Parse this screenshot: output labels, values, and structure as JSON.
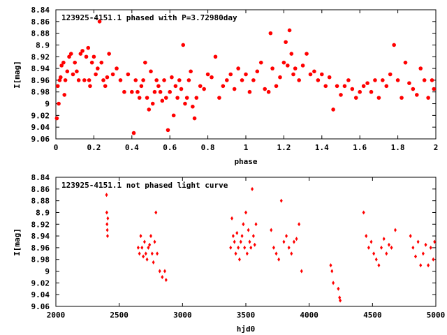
{
  "chart_data": [
    {
      "type": "scatter",
      "title": "123925-4151.1 phased with P=3.72980day",
      "xlabel": "phase",
      "ylabel": "I[mag]",
      "xlim": [
        0,
        2
      ],
      "ylim": [
        8.84,
        9.06
      ],
      "y_inverted": true,
      "grid": false,
      "x_ticks": [
        "0",
        "0.2",
        "0.4",
        "0.6",
        "0.8",
        "1",
        "1.2",
        "1.4",
        "1.6",
        "1.8",
        "2"
      ],
      "y_ticks": [
        "8.84",
        "8.86",
        "8.88",
        "8.9",
        "8.92",
        "8.94",
        "8.96",
        "8.98",
        "9",
        "9.02",
        "9.04",
        "9.06"
      ],
      "marker_color": "#ff0000",
      "marker": "filled-circle",
      "series": [
        {
          "points": [
            [
              0.005,
              9.025
            ],
            [
              0.01,
              8.97
            ],
            [
              0.015,
              9.0
            ],
            [
              0.02,
              8.96
            ],
            [
              0.025,
              8.955
            ],
            [
              0.03,
              8.935
            ],
            [
              0.04,
              8.93
            ],
            [
              0.045,
              8.985
            ],
            [
              0.05,
              8.96
            ],
            [
              0.06,
              8.945
            ],
            [
              0.07,
              8.92
            ],
            [
              0.08,
              8.915
            ],
            [
              0.09,
              8.95
            ],
            [
              0.1,
              8.93
            ],
            [
              0.11,
              8.945
            ],
            [
              0.12,
              8.96
            ],
            [
              0.13,
              8.915
            ],
            [
              0.14,
              8.91
            ],
            [
              0.15,
              8.96
            ],
            [
              0.16,
              8.92
            ],
            [
              0.17,
              8.905
            ],
            [
              0.175,
              8.96
            ],
            [
              0.18,
              8.97
            ],
            [
              0.19,
              8.93
            ],
            [
              0.2,
              8.92
            ],
            [
              0.21,
              8.95
            ],
            [
              0.22,
              8.94
            ],
            [
              0.23,
              8.86
            ],
            [
              0.24,
              8.93
            ],
            [
              0.25,
              8.96
            ],
            [
              0.26,
              8.97
            ],
            [
              0.27,
              8.955
            ],
            [
              0.28,
              8.915
            ],
            [
              0.3,
              8.95
            ],
            [
              0.32,
              8.94
            ],
            [
              0.34,
              8.96
            ],
            [
              0.36,
              8.98
            ],
            [
              0.38,
              8.95
            ],
            [
              0.4,
              8.98
            ],
            [
              0.41,
              9.05
            ],
            [
              0.42,
              8.96
            ],
            [
              0.43,
              8.98
            ],
            [
              0.44,
              8.99
            ],
            [
              0.45,
              8.97
            ],
            [
              0.46,
              8.96
            ],
            [
              0.47,
              8.93
            ],
            [
              0.48,
              8.99
            ],
            [
              0.49,
              9.01
            ],
            [
              0.5,
              8.945
            ],
            [
              0.51,
              9.0
            ],
            [
              0.52,
              8.98
            ],
            [
              0.53,
              8.96
            ],
            [
              0.54,
              8.97
            ],
            [
              0.55,
              8.98
            ],
            [
              0.56,
              8.995
            ],
            [
              0.57,
              8.96
            ],
            [
              0.58,
              8.99
            ],
            [
              0.59,
              9.045
            ],
            [
              0.6,
              8.98
            ],
            [
              0.61,
              8.955
            ],
            [
              0.62,
              9.02
            ],
            [
              0.63,
              8.97
            ],
            [
              0.64,
              8.99
            ],
            [
              0.65,
              8.96
            ],
            [
              0.66,
              8.975
            ],
            [
              0.67,
              8.9
            ],
            [
              0.68,
              9.0
            ],
            [
              0.69,
              8.99
            ],
            [
              0.7,
              8.96
            ],
            [
              0.71,
              8.945
            ],
            [
              0.72,
              9.005
            ],
            [
              0.73,
              9.025
            ],
            [
              0.74,
              8.99
            ],
            [
              0.76,
              8.97
            ],
            [
              0.78,
              8.975
            ],
            [
              0.8,
              8.95
            ],
            [
              0.82,
              8.955
            ],
            [
              0.84,
              8.92
            ],
            [
              0.86,
              8.99
            ],
            [
              0.88,
              8.97
            ],
            [
              0.9,
              8.96
            ],
            [
              0.92,
              8.95
            ],
            [
              0.94,
              8.975
            ],
            [
              0.96,
              8.94
            ],
            [
              0.98,
              8.96
            ],
            [
              1.0,
              8.95
            ],
            [
              1.02,
              8.98
            ],
            [
              1.04,
              8.96
            ],
            [
              1.06,
              8.945
            ],
            [
              1.08,
              8.93
            ],
            [
              1.1,
              8.975
            ],
            [
              1.12,
              8.98
            ],
            [
              1.13,
              8.88
            ],
            [
              1.14,
              8.94
            ],
            [
              1.16,
              8.97
            ],
            [
              1.18,
              8.955
            ],
            [
              1.2,
              8.93
            ],
            [
              1.21,
              8.895
            ],
            [
              1.22,
              8.935
            ],
            [
              1.23,
              8.875
            ],
            [
              1.24,
              8.915
            ],
            [
              1.25,
              8.95
            ],
            [
              1.26,
              8.94
            ],
            [
              1.28,
              8.96
            ],
            [
              1.3,
              8.935
            ],
            [
              1.32,
              8.915
            ],
            [
              1.34,
              8.95
            ],
            [
              1.36,
              8.945
            ],
            [
              1.38,
              8.96
            ],
            [
              1.4,
              8.95
            ],
            [
              1.42,
              8.97
            ],
            [
              1.44,
              8.955
            ],
            [
              1.46,
              9.01
            ],
            [
              1.48,
              8.97
            ],
            [
              1.5,
              8.985
            ],
            [
              1.52,
              8.97
            ],
            [
              1.54,
              8.96
            ],
            [
              1.56,
              8.975
            ],
            [
              1.58,
              8.99
            ],
            [
              1.6,
              8.98
            ],
            [
              1.62,
              8.97
            ],
            [
              1.64,
              8.965
            ],
            [
              1.66,
              8.98
            ],
            [
              1.68,
              8.96
            ],
            [
              1.7,
              8.99
            ],
            [
              1.72,
              8.96
            ],
            [
              1.74,
              8.97
            ],
            [
              1.76,
              8.95
            ],
            [
              1.78,
              8.9
            ],
            [
              1.8,
              8.96
            ],
            [
              1.82,
              8.99
            ],
            [
              1.84,
              8.93
            ],
            [
              1.86,
              8.965
            ],
            [
              1.88,
              8.975
            ],
            [
              1.9,
              8.985
            ],
            [
              1.92,
              8.94
            ],
            [
              1.94,
              8.96
            ],
            [
              1.96,
              8.99
            ],
            [
              1.98,
              8.96
            ],
            [
              1.99,
              8.975
            ]
          ]
        }
      ]
    },
    {
      "type": "scatter",
      "title": "123925-4151.1 not phased light curve",
      "xlabel": "hjd0",
      "ylabel": "I[mag]",
      "xlim": [
        2000,
        5000
      ],
      "ylim": [
        8.84,
        9.06
      ],
      "y_inverted": true,
      "grid": false,
      "x_ticks": [
        "2000",
        "2500",
        "3000",
        "3500",
        "4000",
        "4500",
        "5000"
      ],
      "y_ticks": [
        "8.84",
        "8.86",
        "8.88",
        "8.9",
        "8.92",
        "8.94",
        "8.96",
        "8.98",
        "9",
        "9.02",
        "9.04",
        "9.06"
      ],
      "marker_color": "#ff0000",
      "marker": "diamond",
      "series": [
        {
          "points": [
            [
              2400,
              8.87
            ],
            [
              2402,
              8.9
            ],
            [
              2404,
              8.92
            ],
            [
              2406,
              8.93
            ],
            [
              2408,
              8.94
            ],
            [
              2410,
              8.91
            ],
            [
              2650,
              8.96
            ],
            [
              2660,
              8.97
            ],
            [
              2670,
              8.94
            ],
            [
              2680,
              8.96
            ],
            [
              2690,
              8.975
            ],
            [
              2700,
              8.95
            ],
            [
              2710,
              8.97
            ],
            [
              2720,
              8.98
            ],
            [
              2730,
              8.96
            ],
            [
              2740,
              8.955
            ],
            [
              2750,
              8.94
            ],
            [
              2760,
              8.97
            ],
            [
              2770,
              8.985
            ],
            [
              2780,
              8.95
            ],
            [
              2790,
              8.9
            ],
            [
              2800,
              8.97
            ],
            [
              2820,
              9.0
            ],
            [
              2840,
              9.01
            ],
            [
              2860,
              9.0
            ],
            [
              2870,
              9.015
            ],
            [
              3380,
              8.96
            ],
            [
              3390,
              8.91
            ],
            [
              3400,
              8.94
            ],
            [
              3410,
              8.95
            ],
            [
              3420,
              8.97
            ],
            [
              3430,
              8.935
            ],
            [
              3440,
              8.96
            ],
            [
              3450,
              8.98
            ],
            [
              3460,
              8.95
            ],
            [
              3470,
              8.94
            ],
            [
              3480,
              8.92
            ],
            [
              3490,
              8.96
            ],
            [
              3500,
              8.9
            ],
            [
              3510,
              8.97
            ],
            [
              3520,
              8.93
            ],
            [
              3530,
              8.95
            ],
            [
              3540,
              8.96
            ],
            [
              3550,
              8.86
            ],
            [
              3560,
              8.94
            ],
            [
              3570,
              8.955
            ],
            [
              3580,
              8.92
            ],
            [
              3700,
              8.93
            ],
            [
              3720,
              8.96
            ],
            [
              3740,
              8.97
            ],
            [
              3760,
              8.98
            ],
            [
              3780,
              8.88
            ],
            [
              3800,
              8.95
            ],
            [
              3820,
              8.94
            ],
            [
              3840,
              8.96
            ],
            [
              3860,
              8.97
            ],
            [
              3880,
              8.95
            ],
            [
              3900,
              8.945
            ],
            [
              3920,
              8.92
            ],
            [
              3940,
              9.0
            ],
            [
              4170,
              8.99
            ],
            [
              4180,
              9.0
            ],
            [
              4190,
              9.02
            ],
            [
              4230,
              9.03
            ],
            [
              4240,
              9.045
            ],
            [
              4245,
              9.05
            ],
            [
              4430,
              8.9
            ],
            [
              4450,
              8.94
            ],
            [
              4470,
              8.96
            ],
            [
              4490,
              8.95
            ],
            [
              4510,
              8.97
            ],
            [
              4530,
              8.98
            ],
            [
              4550,
              8.99
            ],
            [
              4570,
              8.96
            ],
            [
              4590,
              8.945
            ],
            [
              4610,
              8.97
            ],
            [
              4630,
              8.955
            ],
            [
              4650,
              8.96
            ],
            [
              4680,
              8.93
            ],
            [
              4800,
              8.94
            ],
            [
              4820,
              8.96
            ],
            [
              4840,
              8.975
            ],
            [
              4860,
              8.95
            ],
            [
              4880,
              8.99
            ],
            [
              4900,
              8.97
            ],
            [
              4920,
              8.955
            ],
            [
              4940,
              8.99
            ],
            [
              4960,
              8.96
            ],
            [
              4980,
              8.98
            ],
            [
              4990,
              8.95
            ]
          ]
        }
      ]
    }
  ]
}
